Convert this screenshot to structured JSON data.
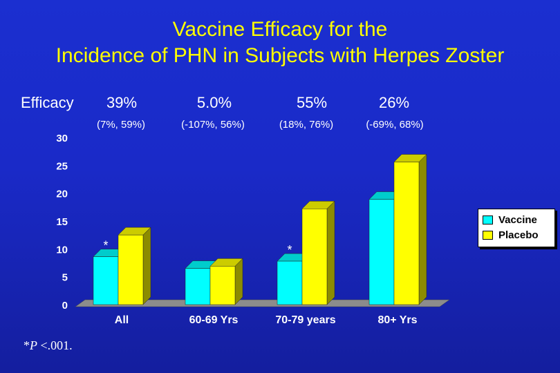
{
  "title": {
    "line1": "Vaccine Efficacy for the",
    "line2": "Incidence of PHN in Subjects with Herpes Zoster"
  },
  "efficacy": {
    "label": "Efficacy",
    "values": [
      "39%",
      "5.0%",
      "55%",
      "26%"
    ],
    "ci": [
      "(7%, 59%)",
      "(-107%, 56%)",
      "(18%, 76%)",
      "(-69%, 68%)"
    ]
  },
  "footnote": {
    "star": "*",
    "p": "P",
    "rest": " <.001."
  },
  "colors": {
    "vaccine": "#00ffff",
    "placebo": "#ffff00",
    "title": "#ffff00",
    "background": "#1a2ac8"
  },
  "chart_data": {
    "type": "bar",
    "categories": [
      "All",
      "60-69 Yrs",
      "70-79 years",
      "80+ Yrs"
    ],
    "series": [
      {
        "name": "Vaccine",
        "values": [
          8.6,
          6.5,
          7.8,
          18.9
        ]
      },
      {
        "name": "Placebo",
        "values": [
          12.5,
          6.9,
          17.2,
          25.6
        ]
      }
    ],
    "ylim": [
      0,
      30
    ],
    "yticks": [
      0,
      5,
      10,
      15,
      20,
      25,
      30
    ],
    "annotations": [
      {
        "category": "All",
        "text": "*"
      },
      {
        "category": "70-79 years",
        "text": "*"
      }
    ],
    "legend": "right",
    "grid": false
  }
}
